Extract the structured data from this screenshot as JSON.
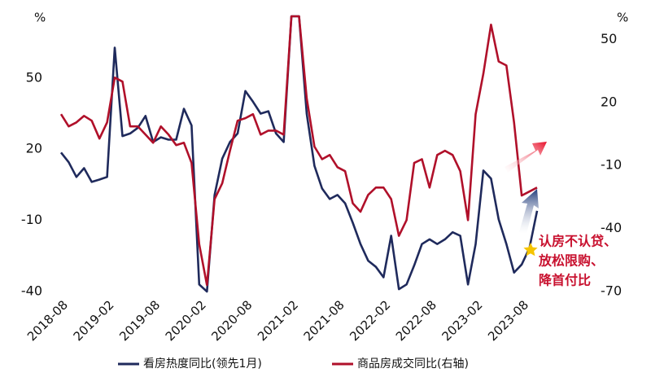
{
  "chart_data": {
    "type": "line",
    "categories": [
      "2018-08",
      null,
      null,
      null,
      null,
      null,
      "2019-02",
      null,
      null,
      null,
      null,
      null,
      "2019-08",
      null,
      null,
      null,
      null,
      null,
      "2020-02",
      null,
      null,
      null,
      null,
      null,
      "2020-08",
      null,
      null,
      null,
      null,
      null,
      "2021-02",
      null,
      null,
      null,
      null,
      null,
      "2021-08",
      null,
      null,
      null,
      null,
      null,
      "2022-02",
      null,
      null,
      null,
      null,
      null,
      "2022-08",
      null,
      null,
      null,
      null,
      null,
      "2023-02",
      null,
      null,
      null,
      null,
      null,
      "2023-08",
      null,
      null
    ],
    "series": [
      {
        "name": "看房热度同比(领先1月)",
        "color": "#1f2a5c",
        "values": [
          18.6,
          14.5,
          8.3,
          12,
          6.2,
          7.2,
          8.3,
          62.8,
          25.5,
          26.6,
          29,
          34,
          23,
          25,
          24,
          24,
          37,
          30,
          -37,
          -40,
          0.7,
          16,
          23,
          26.6,
          44.5,
          40,
          35,
          36,
          26.6,
          23,
          76,
          76,
          35,
          13,
          3.4,
          -1,
          0.7,
          -2.8,
          -11,
          -20,
          -27,
          -29.6,
          -34,
          -16.5,
          -39,
          -37,
          -29,
          -20,
          -18,
          -20,
          -18,
          -15,
          -16.5,
          -37,
          -20,
          11,
          7.6,
          -9.6,
          -20,
          -32,
          -28.6,
          -21.7,
          -6
        ]
      },
      {
        "name": "商品房成交同比(右轴)",
        "color": "#b0102a",
        "axis": "y2",
        "values": [
          14.4,
          8.6,
          10.5,
          13.6,
          11.3,
          2.8,
          10.5,
          31.8,
          29.9,
          8.6,
          8.6,
          4.7,
          0.8,
          8.6,
          4.7,
          -0.3,
          0.8,
          -8.8,
          -47.5,
          -66.9,
          -26,
          -18.5,
          -3,
          11.3,
          12.5,
          14.4,
          4.7,
          6.6,
          6.6,
          4.7,
          61,
          61,
          22,
          -1,
          -7,
          -5,
          -10.8,
          -12.7,
          -28,
          -32,
          -24,
          -20.5,
          -20.5,
          -26,
          -43.5,
          -36,
          -8.8,
          -7,
          -20.5,
          -5,
          -3,
          -5,
          -12.7,
          -36,
          14.4,
          33.7,
          57,
          39.5,
          37.6,
          10.5,
          -24.3,
          -22.4,
          -20.5
        ]
      }
    ],
    "ylim": [
      -40,
      76
    ],
    "yticks": [
      -40,
      -10,
      20,
      50
    ],
    "y2lim": [
      -70,
      61
    ],
    "y2ticks": [
      -70,
      -40,
      -10,
      20,
      50
    ],
    "y_unit": "%",
    "y2_unit": "%",
    "annotation": [
      "认房不认贷、",
      "放松限购、",
      "降首付比"
    ]
  }
}
